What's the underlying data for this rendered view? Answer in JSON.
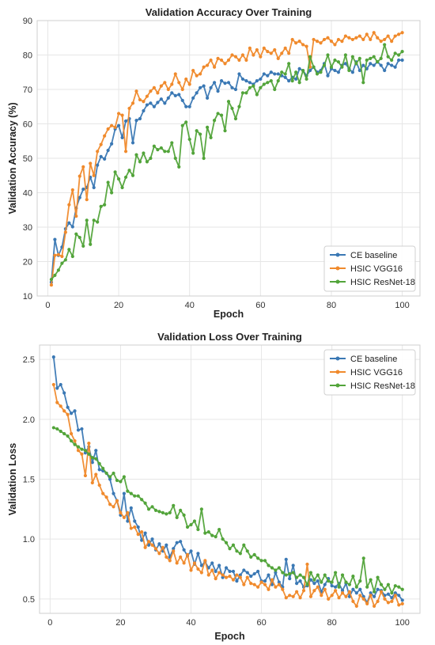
{
  "chart_data": [
    {
      "type": "line",
      "title": "Validation Accuracy Over Training",
      "xlabel": "Epoch",
      "ylabel": "Validation Accuracy (%)",
      "xlim": [
        -3,
        105
      ],
      "ylim": [
        10,
        90
      ],
      "xticks": [
        "0",
        "20",
        "40",
        "60",
        "80",
        "100"
      ],
      "yticks": [
        "10",
        "20",
        "30",
        "40",
        "50",
        "60",
        "70",
        "80",
        "90"
      ],
      "grid": true,
      "legend_position": "bottom-right",
      "x": [
        1,
        2,
        3,
        4,
        5,
        6,
        7,
        8,
        9,
        10,
        11,
        12,
        13,
        14,
        15,
        16,
        17,
        18,
        19,
        20,
        21,
        22,
        23,
        24,
        25,
        26,
        27,
        28,
        29,
        30,
        31,
        32,
        33,
        34,
        35,
        36,
        37,
        38,
        39,
        40,
        41,
        42,
        43,
        44,
        45,
        46,
        47,
        48,
        49,
        50,
        51,
        52,
        53,
        54,
        55,
        56,
        57,
        58,
        59,
        60,
        61,
        62,
        63,
        64,
        65,
        66,
        67,
        68,
        69,
        70,
        71,
        72,
        73,
        74,
        75,
        76,
        77,
        78,
        79,
        80,
        81,
        82,
        83,
        84,
        85,
        86,
        87,
        88,
        89,
        90,
        91,
        92,
        93,
        94,
        95,
        96,
        97,
        98,
        99,
        100
      ],
      "series": [
        {
          "name": "CE baseline",
          "color": "#3a78b4",
          "values": [
            14.0,
            26.4,
            21.8,
            24.2,
            29.5,
            31.2,
            30.1,
            35.5,
            38.6,
            41.0,
            41.5,
            44.5,
            41.5,
            48.0,
            50.5,
            49.8,
            52.3,
            54.2,
            58.5,
            59.5,
            56.0,
            60.8,
            61.5,
            54.5,
            61.0,
            61.5,
            63.8,
            65.5,
            66.0,
            65.0,
            66.2,
            67.2,
            66.0,
            67.5,
            69.0,
            68.2,
            68.5,
            66.8,
            65.0,
            65.0,
            67.5,
            69.0,
            70.5,
            71.0,
            67.5,
            70.5,
            72.0,
            69.5,
            72.5,
            71.8,
            72.0,
            70.5,
            70.0,
            74.5,
            73.0,
            72.5,
            72.0,
            71.5,
            72.5,
            73.0,
            74.5,
            74.0,
            75.0,
            74.5,
            74.5,
            74.0,
            73.5,
            72.5,
            73.5,
            73.0,
            76.0,
            75.5,
            74.0,
            75.5,
            76.5,
            75.0,
            75.5,
            77.5,
            74.0,
            76.0,
            75.5,
            75.0,
            77.0,
            77.5,
            76.0,
            75.0,
            78.0,
            75.5,
            77.0,
            76.0,
            77.5,
            77.0,
            78.0,
            77.0,
            75.5,
            77.5,
            77.0,
            76.5,
            78.5,
            78.5
          ]
        },
        {
          "name": "HSIC VGG16",
          "color": "#f08a2c",
          "values": [
            13.2,
            21.8,
            22.0,
            21.5,
            28.5,
            36.5,
            40.8,
            33.2,
            44.8,
            47.5,
            38.0,
            48.5,
            45.0,
            52.0,
            54.0,
            56.5,
            58.5,
            59.5,
            59.0,
            63.0,
            62.5,
            52.0,
            64.5,
            66.0,
            69.5,
            67.0,
            66.5,
            68.0,
            69.5,
            70.5,
            69.0,
            71.0,
            72.0,
            70.0,
            71.5,
            74.5,
            72.0,
            70.0,
            73.0,
            71.5,
            75.5,
            74.0,
            74.5,
            76.5,
            77.0,
            78.5,
            76.5,
            79.0,
            78.5,
            77.5,
            78.5,
            80.0,
            79.5,
            78.5,
            80.0,
            78.5,
            82.0,
            80.0,
            81.5,
            79.5,
            82.0,
            81.0,
            80.5,
            81.5,
            79.0,
            80.5,
            82.0,
            80.5,
            84.5,
            83.5,
            84.0,
            83.0,
            82.5,
            76.5,
            84.5,
            84.0,
            83.5,
            84.5,
            85.0,
            84.0,
            83.0,
            84.5,
            84.0,
            85.5,
            85.0,
            84.5,
            85.0,
            85.5,
            84.5,
            86.0,
            84.5,
            86.5,
            85.0,
            84.0,
            84.5,
            85.5,
            84.0,
            85.5,
            86.0,
            86.5
          ]
        },
        {
          "name": "HSIC ResNet-18",
          "color": "#52a43a",
          "values": [
            14.8,
            16.0,
            17.5,
            19.5,
            20.5,
            23.5,
            21.5,
            28.0,
            27.0,
            24.5,
            32.0,
            25.0,
            32.0,
            31.5,
            36.0,
            36.5,
            43.0,
            40.0,
            46.0,
            44.0,
            41.5,
            44.5,
            46.5,
            45.0,
            51.0,
            49.0,
            51.5,
            49.0,
            50.0,
            53.5,
            52.5,
            53.0,
            52.0,
            52.0,
            54.5,
            50.0,
            47.5,
            59.5,
            60.5,
            55.5,
            51.5,
            58.0,
            57.0,
            50.0,
            59.0,
            56.0,
            61.0,
            63.0,
            62.5,
            58.0,
            66.5,
            64.5,
            61.5,
            65.0,
            69.0,
            69.0,
            70.5,
            71.0,
            68.5,
            70.5,
            71.5,
            72.0,
            72.5,
            70.0,
            72.5,
            75.0,
            74.5,
            77.5,
            72.5,
            75.0,
            72.0,
            75.5,
            73.0,
            79.5,
            76.5,
            74.5,
            75.0,
            77.0,
            80.0,
            76.5,
            78.5,
            78.0,
            76.5,
            80.0,
            75.5,
            79.5,
            77.5,
            79.0,
            72.0,
            78.5,
            79.0,
            79.5,
            78.0,
            79.0,
            83.0,
            79.5,
            78.5,
            80.5,
            80.0,
            81.0
          ]
        }
      ]
    },
    {
      "type": "line",
      "title": "Validation Loss Over Training",
      "xlabel": "Epoch",
      "ylabel": "Validation Loss",
      "xlim": [
        -3,
        105
      ],
      "ylim": [
        0.38,
        2.62
      ],
      "xticks": [
        "0",
        "20",
        "40",
        "60",
        "80",
        "100"
      ],
      "yticks": [
        "0.5",
        "1.0",
        "1.5",
        "2.0",
        "2.5"
      ],
      "grid": true,
      "legend_position": "top-right",
      "x": [
        1,
        2,
        3,
        4,
        5,
        6,
        7,
        8,
        9,
        10,
        11,
        12,
        13,
        14,
        15,
        16,
        17,
        18,
        19,
        20,
        21,
        22,
        23,
        24,
        25,
        26,
        27,
        28,
        29,
        30,
        31,
        32,
        33,
        34,
        35,
        36,
        37,
        38,
        39,
        40,
        41,
        42,
        43,
        44,
        45,
        46,
        47,
        48,
        49,
        50,
        51,
        52,
        53,
        54,
        55,
        56,
        57,
        58,
        59,
        60,
        61,
        62,
        63,
        64,
        65,
        66,
        67,
        68,
        69,
        70,
        71,
        72,
        73,
        74,
        75,
        76,
        77,
        78,
        79,
        80,
        81,
        82,
        83,
        84,
        85,
        86,
        87,
        88,
        89,
        90,
        91,
        92,
        93,
        94,
        95,
        96,
        97,
        98,
        99,
        100
      ],
      "series": [
        {
          "name": "CE baseline",
          "color": "#3a78b4",
          "values": [
            2.52,
            2.26,
            2.29,
            2.22,
            2.1,
            2.05,
            2.07,
            1.91,
            1.92,
            1.72,
            1.77,
            1.64,
            1.74,
            1.58,
            1.57,
            1.55,
            1.5,
            1.38,
            1.32,
            1.2,
            1.38,
            1.15,
            1.26,
            1.15,
            1.1,
            0.99,
            1.05,
            0.95,
            1.0,
            0.91,
            0.96,
            0.9,
            0.95,
            0.85,
            0.92,
            0.97,
            0.98,
            0.91,
            0.86,
            0.9,
            0.79,
            0.88,
            0.78,
            0.81,
            0.76,
            0.8,
            0.73,
            0.78,
            0.68,
            0.76,
            0.73,
            0.73,
            0.65,
            0.7,
            0.74,
            0.72,
            0.69,
            0.71,
            0.73,
            0.65,
            0.65,
            0.7,
            0.62,
            0.72,
            0.64,
            0.6,
            0.83,
            0.67,
            0.78,
            0.63,
            0.65,
            0.6,
            0.61,
            0.66,
            0.63,
            0.65,
            0.56,
            0.62,
            0.67,
            0.61,
            0.6,
            0.63,
            0.57,
            0.63,
            0.52,
            0.58,
            0.55,
            0.58,
            0.52,
            0.47,
            0.55,
            0.52,
            0.58,
            0.57,
            0.53,
            0.54,
            0.51,
            0.55,
            0.53,
            0.49
          ]
        },
        {
          "name": "HSIC VGG16",
          "color": "#f08a2c",
          "values": [
            2.29,
            2.14,
            2.11,
            2.07,
            2.04,
            1.88,
            1.82,
            1.74,
            1.71,
            1.53,
            1.8,
            1.47,
            1.54,
            1.45,
            1.38,
            1.35,
            1.29,
            1.27,
            1.32,
            1.22,
            1.18,
            1.22,
            1.09,
            1.1,
            1.04,
            1.06,
            0.93,
            0.98,
            0.95,
            0.92,
            0.88,
            0.93,
            0.85,
            0.82,
            0.9,
            0.8,
            0.85,
            0.8,
            0.87,
            0.74,
            0.8,
            0.75,
            0.72,
            0.82,
            0.7,
            0.74,
            0.67,
            0.72,
            0.7,
            0.68,
            0.69,
            0.66,
            0.7,
            0.68,
            0.62,
            0.68,
            0.63,
            0.62,
            0.6,
            0.64,
            0.62,
            0.58,
            0.66,
            0.6,
            0.62,
            0.58,
            0.51,
            0.53,
            0.52,
            0.56,
            0.51,
            0.57,
            0.79,
            0.52,
            0.57,
            0.6,
            0.53,
            0.58,
            0.5,
            0.53,
            0.57,
            0.51,
            0.55,
            0.52,
            0.56,
            0.48,
            0.44,
            0.53,
            0.5,
            0.46,
            0.53,
            0.44,
            0.48,
            0.56,
            0.5,
            0.47,
            0.48,
            0.53,
            0.45,
            0.46
          ]
        },
        {
          "name": "HSIC ResNet-18",
          "color": "#52a43a",
          "values": [
            1.93,
            1.92,
            1.9,
            1.88,
            1.86,
            1.82,
            1.79,
            1.77,
            1.75,
            1.74,
            1.71,
            1.68,
            1.67,
            1.63,
            1.59,
            1.55,
            1.52,
            1.55,
            1.49,
            1.48,
            1.52,
            1.4,
            1.38,
            1.36,
            1.36,
            1.33,
            1.3,
            1.25,
            1.27,
            1.24,
            1.23,
            1.22,
            1.21,
            1.22,
            1.28,
            1.18,
            1.24,
            1.2,
            1.1,
            1.12,
            1.15,
            1.08,
            1.25,
            1.05,
            1.06,
            1.03,
            1.02,
            1.08,
            1.0,
            0.97,
            0.92,
            0.95,
            0.9,
            0.88,
            0.95,
            0.9,
            0.85,
            0.87,
            0.84,
            0.82,
            0.82,
            0.78,
            0.76,
            0.74,
            0.76,
            0.72,
            0.7,
            0.71,
            0.72,
            0.68,
            0.7,
            0.68,
            0.62,
            0.72,
            0.66,
            0.7,
            0.64,
            0.7,
            0.65,
            0.64,
            0.72,
            0.6,
            0.7,
            0.64,
            0.62,
            0.69,
            0.6,
            0.65,
            0.84,
            0.6,
            0.66,
            0.56,
            0.68,
            0.62,
            0.58,
            0.62,
            0.55,
            0.61,
            0.6,
            0.58
          ]
        }
      ]
    }
  ]
}
